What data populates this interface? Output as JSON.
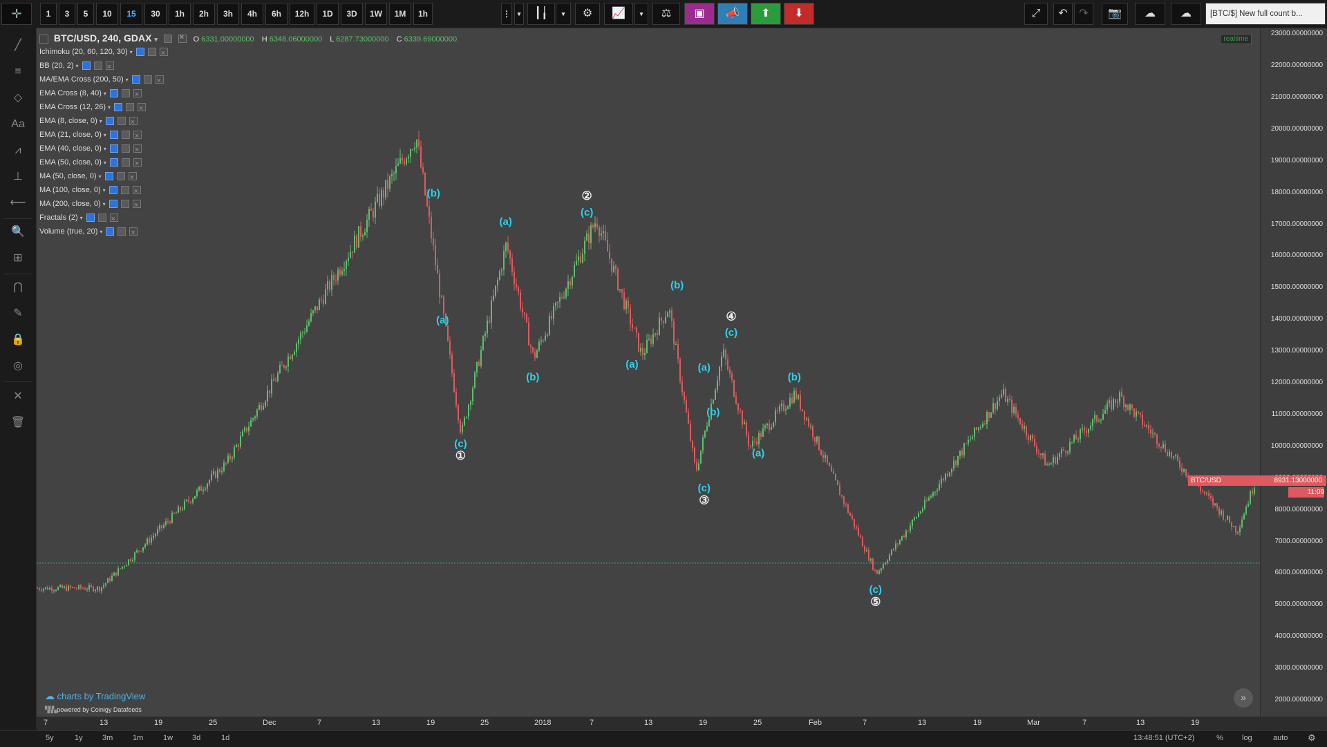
{
  "toolbar": {
    "intervals": [
      "1",
      "3",
      "5",
      "10",
      "15",
      "30",
      "1h",
      "2h",
      "3h",
      "4h",
      "6h",
      "12h",
      "1D",
      "3D",
      "1W",
      "1M",
      "1h"
    ],
    "active_interval": "15",
    "window_title": "[BTC/$] New full count b..."
  },
  "legend": {
    "symbol": "BTC/USD, 240, GDAX",
    "ohlc": {
      "o_label": "O",
      "o": "6331.00000000",
      "h_label": "H",
      "h": "6348.06000000",
      "l_label": "L",
      "l": "6287.73000000",
      "c_label": "C",
      "c": "6339.69000000"
    },
    "indicators": [
      "Ichimoku (20, 60, 120, 30)",
      "BB (20, 2)",
      "MA/EMA Cross (200, 50)",
      "EMA Cross (8, 40)",
      "EMA Cross (12, 26)",
      "EMA (8, close, 0)",
      "EMA (21, close, 0)",
      "EMA (40, close, 0)",
      "EMA (50, close, 0)",
      "MA (50, close, 0)",
      "MA (100, close, 0)",
      "MA (200, close, 0)",
      "Fractals (2)",
      "Volume (true, 20)"
    ]
  },
  "realtime_label": "realtime",
  "branding": {
    "text": "charts by TradingView",
    "powered": "powered by Coinigy Datafeeds"
  },
  "price_axis": {
    "labels": [
      "23000.00000000",
      "22000.00000000",
      "21000.00000000",
      "20000.00000000",
      "19000.00000000",
      "18000.00000000",
      "17000.00000000",
      "16000.00000000",
      "15000.00000000",
      "14000.00000000",
      "13000.00000000",
      "12000.00000000",
      "11000.00000000",
      "10000.00000000",
      "9000.00000000",
      "8000.00000000",
      "7000.00000000",
      "6000.00000000",
      "5000.00000000",
      "4000.00000000",
      "3000.00000000",
      "2000.00000000"
    ],
    "last_symbol": "BTC/USD",
    "last_price": "8931.13000000",
    "countdown": "11:09"
  },
  "time_axis": {
    "labels": [
      "7",
      "13",
      "19",
      "25",
      "Dec",
      "7",
      "13",
      "19",
      "25",
      "2018",
      "7",
      "13",
      "19",
      "25",
      "Feb",
      "7",
      "13",
      "19",
      "Mar",
      "7",
      "13",
      "19"
    ]
  },
  "bottom_bar": {
    "ranges": [
      "5y",
      "1y",
      "3m",
      "1m",
      "1w",
      "3d",
      "1d"
    ],
    "clock": "13:48:51 (UTC+2)",
    "pct": "%",
    "log": "log",
    "auto": "auto"
  },
  "colors": {
    "up": "#5fbf6b",
    "down": "#e0595f",
    "wave_label": "#29d4ee",
    "horizontal_line": "#2fb58f"
  },
  "chart_data": {
    "type": "candlestick",
    "symbol": "BTC/USD",
    "timeframe": "240",
    "exchange": "GDAX",
    "x_range": [
      "2017-11-05",
      "2018-03-20"
    ],
    "ylim": [
      1500,
      23200
    ],
    "horizontal_level": 6339.69,
    "wave_points": [
      {
        "date": "2017-11-12",
        "price": 5550
      },
      {
        "date": "2017-11-26",
        "price": 9500
      },
      {
        "date": "2017-12-17",
        "price": 19800
      },
      {
        "date": "2017-12-22",
        "price": 10400
      },
      {
        "date": "2017-12-27",
        "price": 16400
      },
      {
        "date": "2017-12-30",
        "price": 12800
      },
      {
        "date": "2018-01-06",
        "price": 17200
      },
      {
        "date": "2018-01-11",
        "price": 12900
      },
      {
        "date": "2018-01-14",
        "price": 14400
      },
      {
        "date": "2018-01-17",
        "price": 9200
      },
      {
        "date": "2018-01-20",
        "price": 13000
      },
      {
        "date": "2018-01-23",
        "price": 10000
      },
      {
        "date": "2018-01-28",
        "price": 11700
      },
      {
        "date": "2018-02-06",
        "price": 6000
      },
      {
        "date": "2018-02-20",
        "price": 11700
      },
      {
        "date": "2018-02-25",
        "price": 9400
      },
      {
        "date": "2018-03-05",
        "price": 11600
      },
      {
        "date": "2018-03-18",
        "price": 7350
      },
      {
        "date": "2018-03-20",
        "price": 8900
      }
    ],
    "wave_labels": [
      {
        "text": "(b)",
        "date": "2017-12-19",
        "price": 17900
      },
      {
        "text": "(a)",
        "date": "2017-12-20",
        "price": 13900
      },
      {
        "text": "(c)",
        "date": "2017-12-22",
        "price": 10000
      },
      {
        "text": "①",
        "date": "2017-12-22",
        "price": 9600
      },
      {
        "text": "(a)",
        "date": "2017-12-27",
        "price": 17000
      },
      {
        "text": "(b)",
        "date": "2017-12-30",
        "price": 12100
      },
      {
        "text": "②",
        "date": "2018-01-05",
        "price": 17800
      },
      {
        "text": "(c)",
        "date": "2018-01-05",
        "price": 17300
      },
      {
        "text": "(a)",
        "date": "2018-01-10",
        "price": 12500
      },
      {
        "text": "(b)",
        "date": "2018-01-15",
        "price": 15000
      },
      {
        "text": "(a)",
        "date": "2018-01-18",
        "price": 12400
      },
      {
        "text": "(b)",
        "date": "2018-01-19",
        "price": 11000
      },
      {
        "text": "(c)",
        "date": "2018-01-18",
        "price": 8600
      },
      {
        "text": "③",
        "date": "2018-01-18",
        "price": 8200
      },
      {
        "text": "④",
        "date": "2018-01-21",
        "price": 14000
      },
      {
        "text": "(c)",
        "date": "2018-01-21",
        "price": 13500
      },
      {
        "text": "(a)",
        "date": "2018-01-24",
        "price": 9700
      },
      {
        "text": "(b)",
        "date": "2018-01-28",
        "price": 12100
      },
      {
        "text": "(c)",
        "date": "2018-02-06",
        "price": 5400
      },
      {
        "text": "⑤",
        "date": "2018-02-06",
        "price": 5000
      }
    ]
  }
}
